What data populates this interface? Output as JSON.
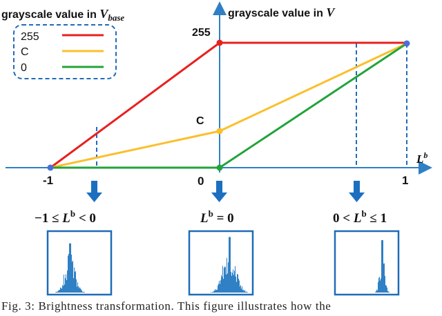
{
  "diagram": {
    "title_left": {
      "text": "grayscale value in ",
      "var": "V",
      "sub": "base"
    },
    "title_right": {
      "text": "grayscale value in ",
      "var": "V"
    },
    "axis_label": {
      "var": "L",
      "sup": "b"
    },
    "ticks": {
      "neg_one": "-1",
      "zero": "0",
      "one": "1",
      "y255": "255",
      "yc": "C"
    },
    "legend": [
      {
        "label": "255",
        "color": "#e8201e"
      },
      {
        "label": "C",
        "color": "#fbbf2a"
      },
      {
        "label": "0",
        "color": "#22a33a"
      }
    ],
    "colors": {
      "axis": "#2f80c4",
      "arrow": "#1b6fc0",
      "histogram": "#2f80c4",
      "endpoint": "#4a6fd6"
    },
    "conditions": {
      "left": {
        "pre": "−1 ≤ ",
        "var": "L",
        "sup": "b",
        "post": " < 0"
      },
      "middle": {
        "var": "L",
        "sup": "b",
        "post": " = 0"
      },
      "right": {
        "pre": "0 < ",
        "var": "L",
        "sup": "b",
        "post": " ≤ 1"
      }
    }
  },
  "caption": "Fig. 3: Brightness transformation. This figure illustrates how the"
}
